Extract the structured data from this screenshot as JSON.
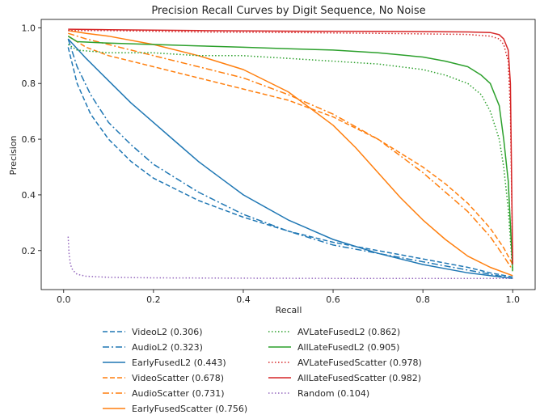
{
  "chart_data": {
    "type": "line",
    "title": "Precision Recall Curves by Digit Sequence, No Noise",
    "xlabel": "Recall",
    "ylabel": "Precision",
    "xlim": [
      -0.05,
      1.05
    ],
    "ylim": [
      0.06,
      1.03
    ],
    "xticks": [
      0.0,
      0.2,
      0.4,
      0.6,
      0.8,
      1.0
    ],
    "xtick_labels": [
      "0.0",
      "0.2",
      "0.4",
      "0.6",
      "0.8",
      "1.0"
    ],
    "yticks": [
      0.2,
      0.4,
      0.6,
      0.8,
      1.0
    ],
    "ytick_labels": [
      "0.2",
      "0.4",
      "0.6",
      "0.8",
      "1.0"
    ],
    "grid": false,
    "legend_position": "below, two columns",
    "series": [
      {
        "name": "VideoL2 (0.306)",
        "color": "#1f77b4",
        "style": "dashed",
        "x": [
          0.01,
          0.03,
          0.06,
          0.1,
          0.15,
          0.2,
          0.25,
          0.3,
          0.4,
          0.5,
          0.6,
          0.7,
          0.8,
          0.9,
          0.95,
          1.0
        ],
        "y": [
          0.93,
          0.8,
          0.69,
          0.6,
          0.52,
          0.46,
          0.42,
          0.38,
          0.32,
          0.27,
          0.23,
          0.2,
          0.17,
          0.14,
          0.12,
          0.105
        ]
      },
      {
        "name": "AudioL2 (0.323)",
        "color": "#1f77b4",
        "style": "dashdot",
        "x": [
          0.01,
          0.03,
          0.06,
          0.1,
          0.15,
          0.2,
          0.25,
          0.3,
          0.35,
          0.4,
          0.5,
          0.6,
          0.7,
          0.8,
          0.9,
          1.0
        ],
        "y": [
          0.96,
          0.86,
          0.76,
          0.66,
          0.58,
          0.51,
          0.46,
          0.41,
          0.37,
          0.33,
          0.27,
          0.22,
          0.19,
          0.16,
          0.13,
          0.1
        ]
      },
      {
        "name": "EarlyFusedL2 (0.443)",
        "color": "#1f77b4",
        "style": "solid",
        "x": [
          0.01,
          0.05,
          0.1,
          0.15,
          0.2,
          0.25,
          0.3,
          0.35,
          0.4,
          0.5,
          0.6,
          0.7,
          0.8,
          0.9,
          1.0
        ],
        "y": [
          0.96,
          0.89,
          0.81,
          0.73,
          0.66,
          0.59,
          0.52,
          0.46,
          0.4,
          0.31,
          0.24,
          0.19,
          0.15,
          0.12,
          0.1
        ]
      },
      {
        "name": "VideoScatter (0.678)",
        "color": "#ff7f0e",
        "style": "dashed",
        "x": [
          0.01,
          0.05,
          0.1,
          0.15,
          0.2,
          0.3,
          0.4,
          0.5,
          0.6,
          0.7,
          0.8,
          0.85,
          0.9,
          0.95,
          0.98,
          1.0
        ],
        "y": [
          0.97,
          0.93,
          0.9,
          0.88,
          0.86,
          0.82,
          0.78,
          0.74,
          0.68,
          0.6,
          0.5,
          0.44,
          0.37,
          0.28,
          0.21,
          0.15
        ]
      },
      {
        "name": "AudioScatter (0.731)",
        "color": "#ff7f0e",
        "style": "dashdot",
        "x": [
          0.01,
          0.05,
          0.1,
          0.2,
          0.3,
          0.4,
          0.5,
          0.6,
          0.7,
          0.8,
          0.85,
          0.9,
          0.95,
          0.98,
          1.0
        ],
        "y": [
          0.98,
          0.96,
          0.94,
          0.9,
          0.86,
          0.82,
          0.76,
          0.69,
          0.6,
          0.48,
          0.41,
          0.34,
          0.25,
          0.18,
          0.13
        ]
      },
      {
        "name": "EarlyFusedScatter (0.756)",
        "color": "#ff7f0e",
        "style": "solid",
        "x": [
          0.01,
          0.05,
          0.1,
          0.2,
          0.3,
          0.4,
          0.5,
          0.6,
          0.65,
          0.7,
          0.75,
          0.8,
          0.85,
          0.9,
          0.95,
          1.0
        ],
        "y": [
          0.99,
          0.98,
          0.97,
          0.94,
          0.9,
          0.85,
          0.77,
          0.65,
          0.57,
          0.48,
          0.39,
          0.31,
          0.24,
          0.18,
          0.14,
          0.11
        ]
      },
      {
        "name": "AVLateFusedL2 (0.862)",
        "color": "#2ca02c",
        "style": "dotted",
        "x": [
          0.01,
          0.03,
          0.1,
          0.2,
          0.3,
          0.4,
          0.5,
          0.6,
          0.7,
          0.8,
          0.85,
          0.9,
          0.93,
          0.95,
          0.97,
          0.98,
          0.99,
          1.0
        ],
        "y": [
          0.94,
          0.92,
          0.91,
          0.91,
          0.9,
          0.9,
          0.89,
          0.88,
          0.87,
          0.85,
          0.83,
          0.8,
          0.76,
          0.7,
          0.6,
          0.5,
          0.35,
          0.12
        ]
      },
      {
        "name": "AllLateFusedL2 (0.905)",
        "color": "#2ca02c",
        "style": "solid",
        "x": [
          0.01,
          0.03,
          0.1,
          0.2,
          0.3,
          0.4,
          0.5,
          0.6,
          0.7,
          0.8,
          0.85,
          0.9,
          0.93,
          0.95,
          0.97,
          0.98,
          0.99,
          1.0
        ],
        "y": [
          0.97,
          0.95,
          0.945,
          0.94,
          0.935,
          0.93,
          0.925,
          0.92,
          0.91,
          0.895,
          0.88,
          0.86,
          0.83,
          0.8,
          0.72,
          0.6,
          0.45,
          0.13
        ]
      },
      {
        "name": "AVLateFusedScatter (0.978)",
        "color": "#d62728",
        "style": "dotted",
        "x": [
          0.01,
          0.1,
          0.3,
          0.5,
          0.7,
          0.9,
          0.95,
          0.97,
          0.98,
          0.99,
          0.995,
          1.0
        ],
        "y": [
          0.99,
          0.99,
          0.985,
          0.983,
          0.98,
          0.976,
          0.97,
          0.96,
          0.94,
          0.88,
          0.7,
          0.15
        ]
      },
      {
        "name": "AllLateFusedScatter (0.982)",
        "color": "#d62728",
        "style": "solid",
        "x": [
          0.01,
          0.1,
          0.3,
          0.5,
          0.7,
          0.9,
          0.95,
          0.97,
          0.98,
          0.99,
          0.995,
          1.0
        ],
        "y": [
          0.995,
          0.993,
          0.99,
          0.988,
          0.987,
          0.985,
          0.983,
          0.975,
          0.96,
          0.92,
          0.8,
          0.15
        ]
      },
      {
        "name": "Random (0.104)",
        "color": "#9467bd",
        "style": "dotted",
        "x": [
          0.01,
          0.012,
          0.015,
          0.02,
          0.03,
          0.05,
          0.1,
          0.2,
          0.4,
          0.6,
          0.8,
          1.0
        ],
        "y": [
          0.25,
          0.19,
          0.15,
          0.13,
          0.115,
          0.108,
          0.104,
          0.102,
          0.101,
          0.1,
          0.1,
          0.1
        ]
      }
    ]
  }
}
